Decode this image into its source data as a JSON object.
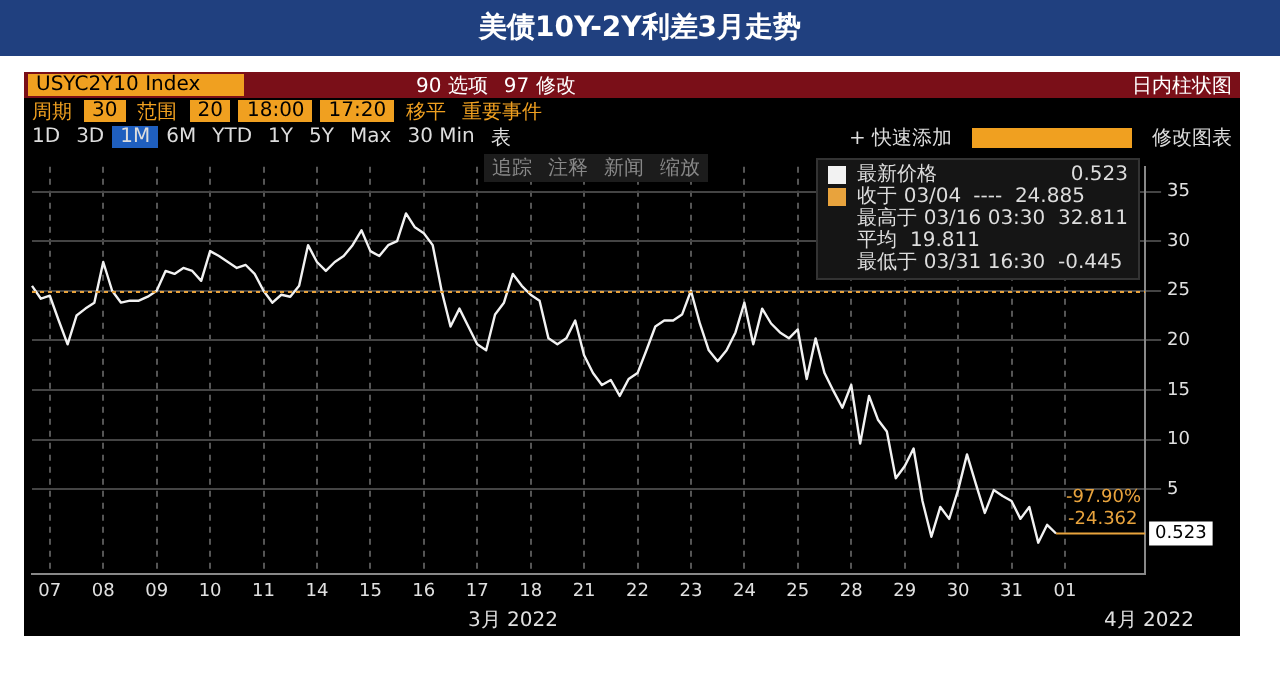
{
  "chart_data": {
    "type": "line",
    "title": "美债10Y-2Y利差3月走势",
    "categories": [
      null,
      null,
      "07",
      null,
      null,
      null,
      null,
      null,
      "08",
      null,
      null,
      null,
      null,
      null,
      "09",
      null,
      null,
      null,
      null,
      null,
      "10",
      null,
      null,
      null,
      null,
      null,
      "11",
      null,
      null,
      null,
      null,
      null,
      "14",
      null,
      null,
      null,
      null,
      null,
      "15",
      null,
      null,
      null,
      null,
      null,
      "16",
      null,
      null,
      null,
      null,
      null,
      "17",
      null,
      null,
      null,
      null,
      null,
      "18",
      null,
      null,
      null,
      null,
      null,
      "21",
      null,
      null,
      null,
      null,
      null,
      "22",
      null,
      null,
      null,
      null,
      null,
      "23",
      null,
      null,
      null,
      null,
      null,
      "24",
      null,
      null,
      null,
      null,
      null,
      "25",
      null,
      null,
      null,
      null,
      null,
      "28",
      null,
      null,
      null,
      null,
      null,
      "29",
      null,
      null,
      null,
      null,
      null,
      "30",
      null,
      null,
      null,
      null,
      null,
      "31",
      null,
      null,
      null,
      null,
      null,
      "01",
      null,
      null,
      null,
      null,
      null,
      null,
      null,
      null,
      null
    ],
    "series": [
      {
        "name": "最新价格",
        "color": "#f2f2f2",
        "values": [
          25.5,
          24.2,
          24.5,
          22,
          19.6,
          22.5,
          23.2,
          23.8,
          27.9,
          25,
          23.8,
          24,
          24,
          24.4,
          25,
          27,
          26.7,
          27.3,
          27,
          26,
          29,
          28.5,
          27.9,
          27.3,
          27.6,
          26.7,
          25,
          23.8,
          24.6,
          24.4,
          25.5,
          29.6,
          27.9,
          27,
          27.9,
          28.5,
          29.6,
          31.1,
          29,
          28.5,
          29.6,
          30,
          32.8,
          31.4,
          30.8,
          29.6,
          25,
          21.4,
          23.2,
          21.4,
          19.6,
          19,
          22.6,
          23.8,
          26.7,
          25.5,
          24.6,
          24,
          20.2,
          19.6,
          20.2,
          22,
          18.5,
          16.7,
          15.5,
          16,
          14.4,
          16.1,
          16.7,
          19,
          21.4,
          22,
          22,
          22.6,
          25,
          21.7,
          19,
          17.9,
          19,
          20.8,
          23.8,
          19.6,
          23.2,
          21.7,
          20.8,
          20.2,
          21.1,
          16.1,
          20.2,
          16.7,
          14.9,
          13.2,
          15.5,
          9.6,
          14.4,
          12,
          10.8,
          6.1,
          7.3,
          9.1,
          3.8,
          0.2,
          3.2,
          2,
          4.9,
          8.5,
          5.5,
          2.6,
          4.9,
          4.3,
          3.8,
          2,
          3.2,
          -0.4,
          1.4,
          0.523,
          null,
          null,
          null,
          null,
          null,
          null,
          null,
          null,
          null,
          null
        ]
      }
    ],
    "ylim": [
      -3.6,
      37.5
    ],
    "yticks": [
      5,
      10,
      15,
      20,
      25,
      30,
      35
    ],
    "grid": true,
    "legend": "top right",
    "marker": "none",
    "line_style": "solid",
    "ref_lines": [
      {
        "axis": "y",
        "value": 24.885,
        "label": "收于 03/04",
        "color": "#e8a33d",
        "line_style": "dotted"
      }
    ],
    "annotations": [
      "USYC2Y10 Index",
      "90 选项",
      "97 修改",
      "日内柱状图",
      "周期",
      "30",
      "范围",
      "20",
      "18:00",
      "17:20",
      "移平",
      "重要事件",
      "1D",
      "3D",
      "1M",
      "6M",
      "YTD",
      "1Y",
      "5Y",
      "Max",
      "30 Min",
      "表",
      "+ 快速添加",
      "修改图表",
      "追踪",
      "注释",
      "新闻",
      "缩放",
      "----  24.885",
      "最高于 03/16 03:30  32.811",
      "平均  19.811",
      "最低于 03/31 16:30  -0.445",
      "-97.90%",
      "-24.362",
      {
        "text": "0.523",
        "y": 0.523
      },
      "3月 2022",
      "4月 2022"
    ]
  }
}
